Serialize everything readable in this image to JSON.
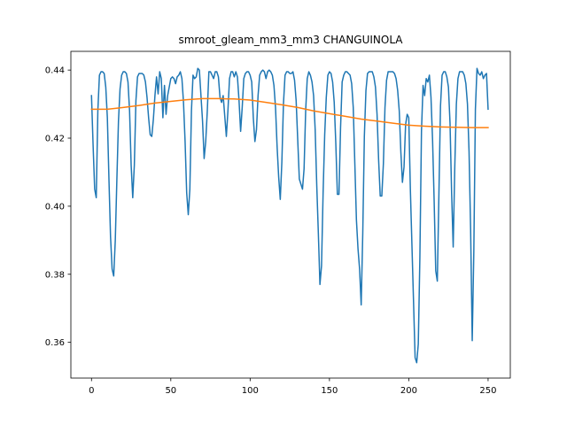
{
  "chart_data": {
    "type": "line",
    "title": "smroot_gleam_mm3_mm3 CHANGUINOLA",
    "xlabel": "",
    "ylabel": "",
    "xlim": [
      -13,
      264
    ],
    "ylim": [
      0.3495,
      0.4455
    ],
    "x_ticks": [
      0,
      50,
      100,
      150,
      200,
      250
    ],
    "y_ticks": [
      0.36,
      0.38,
      0.4,
      0.42,
      0.44
    ],
    "x_tick_labels": [
      "0",
      "50",
      "100",
      "150",
      "200",
      "250"
    ],
    "y_tick_labels": [
      "0.36",
      "0.38",
      "0.40",
      "0.42",
      "0.44"
    ],
    "grid": false,
    "legend": "none",
    "colors": {
      "series_1": "#1f77b4",
      "series_2": "#ff7f0e"
    },
    "series": [
      {
        "points": [
          [
            0,
            0.4325
          ],
          [
            1,
            0.418
          ],
          [
            2,
            0.405
          ],
          [
            3,
            0.4025
          ],
          [
            4,
            0.428
          ],
          [
            5,
            0.4385
          ],
          [
            6,
            0.4395
          ],
          [
            7,
            0.4395
          ],
          [
            8,
            0.439
          ],
          [
            9,
            0.435
          ],
          [
            10,
            0.426
          ],
          [
            11,
            0.408
          ],
          [
            12,
            0.391
          ],
          [
            13,
            0.3815
          ],
          [
            14,
            0.3795
          ],
          [
            15,
            0.39
          ],
          [
            16,
            0.408
          ],
          [
            17,
            0.425
          ],
          [
            18,
            0.4345
          ],
          [
            19,
            0.4385
          ],
          [
            20,
            0.4395
          ],
          [
            21,
            0.4395
          ],
          [
            22,
            0.439
          ],
          [
            23,
            0.4365
          ],
          [
            24,
            0.428
          ],
          [
            25,
            0.412
          ],
          [
            26,
            0.4025
          ],
          [
            27,
            0.412
          ],
          [
            28,
            0.431
          ],
          [
            29,
            0.438
          ],
          [
            30,
            0.439
          ],
          [
            31,
            0.439
          ],
          [
            32,
            0.439
          ],
          [
            33,
            0.4385
          ],
          [
            34,
            0.4365
          ],
          [
            35,
            0.432
          ],
          [
            36,
            0.426
          ],
          [
            37,
            0.421
          ],
          [
            38,
            0.4205
          ],
          [
            39,
            0.4255
          ],
          [
            40,
            0.4325
          ],
          [
            41,
            0.438
          ],
          [
            42,
            0.433
          ],
          [
            43,
            0.4395
          ],
          [
            44,
            0.4375
          ],
          [
            45,
            0.426
          ],
          [
            46,
            0.4355
          ],
          [
            47,
            0.427
          ],
          [
            48,
            0.4325
          ],
          [
            49,
            0.435
          ],
          [
            50,
            0.4375
          ],
          [
            51,
            0.438
          ],
          [
            52,
            0.4375
          ],
          [
            53,
            0.436
          ],
          [
            54,
            0.438
          ],
          [
            55,
            0.4385
          ],
          [
            56,
            0.4395
          ],
          [
            57,
            0.4375
          ],
          [
            58,
            0.4305
          ],
          [
            59,
            0.419
          ],
          [
            60,
            0.404
          ],
          [
            61,
            0.3975
          ],
          [
            62,
            0.405
          ],
          [
            63,
            0.428
          ],
          [
            64,
            0.4385
          ],
          [
            65,
            0.4375
          ],
          [
            66,
            0.438
          ],
          [
            67,
            0.4405
          ],
          [
            68,
            0.44
          ],
          [
            69,
            0.4325
          ],
          [
            70,
            0.425
          ],
          [
            71,
            0.414
          ],
          [
            72,
            0.419
          ],
          [
            73,
            0.428
          ],
          [
            74,
            0.4395
          ],
          [
            75,
            0.4395
          ],
          [
            76,
            0.4385
          ],
          [
            77,
            0.4375
          ],
          [
            78,
            0.4395
          ],
          [
            79,
            0.4395
          ],
          [
            80,
            0.438
          ],
          [
            81,
            0.432
          ],
          [
            82,
            0.4305
          ],
          [
            83,
            0.4325
          ],
          [
            84,
            0.4265
          ],
          [
            85,
            0.4205
          ],
          [
            86,
            0.428
          ],
          [
            87,
            0.4375
          ],
          [
            88,
            0.4395
          ],
          [
            89,
            0.4395
          ],
          [
            90,
            0.438
          ],
          [
            91,
            0.4395
          ],
          [
            92,
            0.438
          ],
          [
            93,
            0.431
          ],
          [
            94,
            0.422
          ],
          [
            95,
            0.429
          ],
          [
            96,
            0.4375
          ],
          [
            97,
            0.439
          ],
          [
            98,
            0.4395
          ],
          [
            99,
            0.4395
          ],
          [
            100,
            0.4385
          ],
          [
            101,
            0.4365
          ],
          [
            102,
            0.426
          ],
          [
            103,
            0.419
          ],
          [
            104,
            0.4225
          ],
          [
            105,
            0.4325
          ],
          [
            106,
            0.4385
          ],
          [
            107,
            0.4395
          ],
          [
            108,
            0.44
          ],
          [
            109,
            0.4395
          ],
          [
            110,
            0.4375
          ],
          [
            111,
            0.4395
          ],
          [
            112,
            0.44
          ],
          [
            113,
            0.4395
          ],
          [
            114,
            0.4385
          ],
          [
            115,
            0.4355
          ],
          [
            116,
            0.429
          ],
          [
            117,
            0.4175
          ],
          [
            118,
            0.4085
          ],
          [
            119,
            0.402
          ],
          [
            120,
            0.413
          ],
          [
            121,
            0.43
          ],
          [
            122,
            0.4385
          ],
          [
            123,
            0.4395
          ],
          [
            124,
            0.4395
          ],
          [
            125,
            0.439
          ],
          [
            126,
            0.439
          ],
          [
            127,
            0.4395
          ],
          [
            128,
            0.437
          ],
          [
            129,
            0.431
          ],
          [
            130,
            0.4195
          ],
          [
            131,
            0.408
          ],
          [
            132,
            0.4065
          ],
          [
            133,
            0.405
          ],
          [
            134,
            0.411
          ],
          [
            135,
            0.428
          ],
          [
            136,
            0.4375
          ],
          [
            137,
            0.4395
          ],
          [
            138,
            0.4385
          ],
          [
            139,
            0.4365
          ],
          [
            140,
            0.4325
          ],
          [
            141,
            0.4225
          ],
          [
            142,
            0.406
          ],
          [
            143,
            0.392
          ],
          [
            144,
            0.377
          ],
          [
            145,
            0.3825
          ],
          [
            146,
            0.404
          ],
          [
            147,
            0.421
          ],
          [
            148,
            0.432
          ],
          [
            149,
            0.4385
          ],
          [
            150,
            0.4395
          ],
          [
            151,
            0.439
          ],
          [
            152,
            0.4365
          ],
          [
            153,
            0.4305
          ],
          [
            154,
            0.4185
          ],
          [
            155,
            0.4035
          ],
          [
            156,
            0.4035
          ],
          [
            157,
            0.423
          ],
          [
            158,
            0.4365
          ],
          [
            159,
            0.4385
          ],
          [
            160,
            0.4395
          ],
          [
            161,
            0.4395
          ],
          [
            162,
            0.439
          ],
          [
            163,
            0.4385
          ],
          [
            164,
            0.436
          ],
          [
            165,
            0.429
          ],
          [
            166,
            0.4125
          ],
          [
            167,
            0.396
          ],
          [
            168,
            0.3875
          ],
          [
            169,
            0.3815
          ],
          [
            170,
            0.371
          ],
          [
            171,
            0.392
          ],
          [
            172,
            0.4205
          ],
          [
            173,
            0.434
          ],
          [
            174,
            0.439
          ],
          [
            175,
            0.4395
          ],
          [
            176,
            0.4395
          ],
          [
            177,
            0.4395
          ],
          [
            178,
            0.438
          ],
          [
            179,
            0.435
          ],
          [
            180,
            0.427
          ],
          [
            181,
            0.4135
          ],
          [
            182,
            0.403
          ],
          [
            183,
            0.403
          ],
          [
            184,
            0.4125
          ],
          [
            185,
            0.429
          ],
          [
            186,
            0.437
          ],
          [
            187,
            0.4395
          ],
          [
            188,
            0.4395
          ],
          [
            189,
            0.4395
          ],
          [
            190,
            0.4395
          ],
          [
            191,
            0.439
          ],
          [
            192,
            0.4375
          ],
          [
            193,
            0.434
          ],
          [
            194,
            0.428
          ],
          [
            195,
            0.416
          ],
          [
            196,
            0.407
          ],
          [
            197,
            0.4115
          ],
          [
            198,
            0.424
          ],
          [
            199,
            0.427
          ],
          [
            200,
            0.426
          ],
          [
            201,
            0.405
          ],
          [
            202,
            0.3885
          ],
          [
            203,
            0.372
          ],
          [
            204,
            0.3555
          ],
          [
            205,
            0.354
          ],
          [
            206,
            0.3595
          ],
          [
            207,
            0.385
          ],
          [
            208,
            0.422
          ],
          [
            209,
            0.4355
          ],
          [
            210,
            0.4325
          ],
          [
            211,
            0.4375
          ],
          [
            212,
            0.4365
          ],
          [
            213,
            0.4385
          ],
          [
            214,
            0.432
          ],
          [
            215,
            0.4195
          ],
          [
            216,
            0.4015
          ],
          [
            217,
            0.381
          ],
          [
            218,
            0.378
          ],
          [
            219,
            0.4035
          ],
          [
            220,
            0.4295
          ],
          [
            221,
            0.4385
          ],
          [
            222,
            0.4395
          ],
          [
            223,
            0.4395
          ],
          [
            224,
            0.438
          ],
          [
            225,
            0.435
          ],
          [
            226,
            0.4245
          ],
          [
            227,
            0.404
          ],
          [
            228,
            0.388
          ],
          [
            229,
            0.4115
          ],
          [
            230,
            0.43
          ],
          [
            231,
            0.4375
          ],
          [
            232,
            0.4395
          ],
          [
            233,
            0.4395
          ],
          [
            234,
            0.4395
          ],
          [
            235,
            0.4385
          ],
          [
            236,
            0.436
          ],
          [
            237,
            0.43
          ],
          [
            238,
            0.416
          ],
          [
            239,
            0.393
          ],
          [
            240,
            0.3605
          ],
          [
            241,
            0.3865
          ],
          [
            242,
            0.4285
          ],
          [
            243,
            0.4405
          ],
          [
            244,
            0.439
          ],
          [
            245,
            0.4385
          ],
          [
            246,
            0.4395
          ],
          [
            247,
            0.4375
          ],
          [
            248,
            0.4385
          ],
          [
            249,
            0.439
          ],
          [
            250,
            0.4285
          ]
        ]
      },
      {
        "points": [
          [
            0,
            0.4285
          ],
          [
            10,
            0.4285
          ],
          [
            20,
            0.429
          ],
          [
            30,
            0.4296
          ],
          [
            40,
            0.4303
          ],
          [
            50,
            0.4308
          ],
          [
            60,
            0.4313
          ],
          [
            70,
            0.4316
          ],
          [
            80,
            0.4316
          ],
          [
            90,
            0.4315
          ],
          [
            100,
            0.4312
          ],
          [
            110,
            0.4305
          ],
          [
            120,
            0.4298
          ],
          [
            130,
            0.429
          ],
          [
            140,
            0.428
          ],
          [
            150,
            0.4272
          ],
          [
            160,
            0.4264
          ],
          [
            170,
            0.4256
          ],
          [
            180,
            0.425
          ],
          [
            190,
            0.4244
          ],
          [
            200,
            0.4238
          ],
          [
            210,
            0.4235
          ],
          [
            220,
            0.4233
          ],
          [
            230,
            0.4232
          ],
          [
            240,
            0.4231
          ],
          [
            250,
            0.4231
          ]
        ]
      }
    ]
  }
}
